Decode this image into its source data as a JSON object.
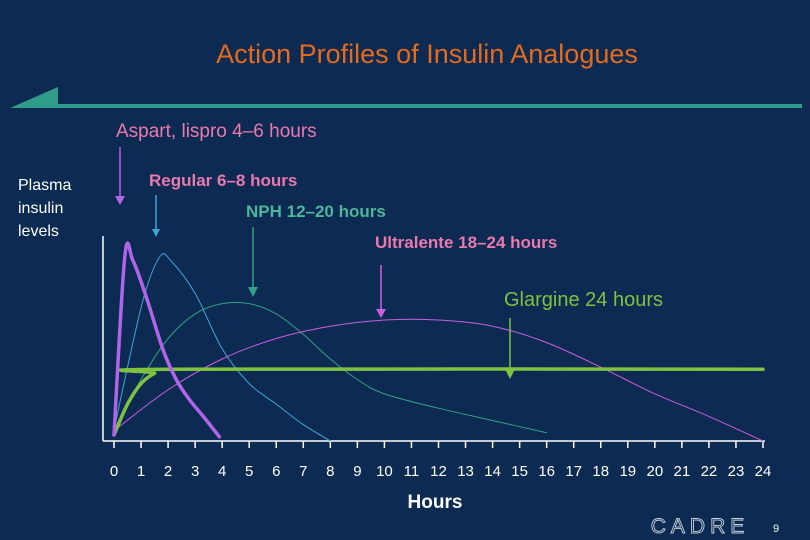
{
  "slide": {
    "title": "Action Profiles of Insulin Analogues",
    "ylabel_lines": [
      "Plasma",
      "insulin",
      "levels"
    ],
    "xlabel": "Hours",
    "brand": "CADRE",
    "page_number": "9"
  },
  "colors": {
    "background": "#0c2a52",
    "title": "#e46a1c",
    "accent_bar": "#2f9c8a",
    "axis": "#ffffff",
    "aspart_lispro": "#b065e8",
    "regular": "#3fa6d3",
    "nph": "#34a086",
    "ultralente": "#c95fe0",
    "glargine": "#7fc241",
    "labels_pink": "#ea79ae"
  },
  "annotations": [
    {
      "text": "Aspart, lispro 4–6 hours",
      "color": "#ea79ae",
      "arrow_color": "#b065e8"
    },
    {
      "text": "Regular 6–8 hours",
      "color": "#ea79ae",
      "arrow_color": "#3fa6d3"
    },
    {
      "text": "NPH 12–20 hours",
      "color": "#4fb59a",
      "arrow_color": "#34a086"
    },
    {
      "text": "Ultralente 18–24 hours",
      "color": "#ea79ae",
      "arrow_color": "#c95fe0"
    },
    {
      "text": "Glargine 24 hours",
      "color": "#7fc241",
      "arrow_color": "#7fc241"
    }
  ],
  "chart_data": {
    "type": "line",
    "xlabel": "Hours",
    "ylabel": "Plasma insulin levels",
    "xlim": [
      0,
      24
    ],
    "ylim": [
      0,
      1
    ],
    "x_ticks": [
      "0",
      "1",
      "2",
      "3",
      "4",
      "5",
      "6",
      "7",
      "8",
      "9",
      "10",
      "11",
      "12",
      "13",
      "14",
      "15",
      "16",
      "17",
      "18",
      "19",
      "20",
      "21",
      "22",
      "23",
      "24"
    ],
    "grid": false,
    "series": [
      {
        "name": "Aspart, lispro",
        "color": "#b065e8",
        "width": 3.5,
        "points": [
          [
            0,
            0.03
          ],
          [
            0.4,
            0.9
          ],
          [
            0.7,
            0.88
          ],
          [
            1.2,
            0.7
          ],
          [
            1.8,
            0.45
          ],
          [
            2.3,
            0.3
          ],
          [
            2.8,
            0.2
          ],
          [
            3.3,
            0.12
          ],
          [
            3.9,
            0.02
          ]
        ]
      },
      {
        "name": "Regular",
        "color": "#3fa6d3",
        "width": 1,
        "points": [
          [
            0,
            0.05
          ],
          [
            0.4,
            0.3
          ],
          [
            1.1,
            0.7
          ],
          [
            1.7,
            0.9
          ],
          [
            2.1,
            0.88
          ],
          [
            3,
            0.72
          ],
          [
            4,
            0.45
          ],
          [
            5,
            0.28
          ],
          [
            6,
            0.18
          ],
          [
            7,
            0.08
          ],
          [
            8,
            0
          ]
        ]
      },
      {
        "name": "NPH",
        "color": "#34a086",
        "width": 1,
        "points": [
          [
            0,
            0.05
          ],
          [
            1,
            0.3
          ],
          [
            2,
            0.5
          ],
          [
            3,
            0.62
          ],
          [
            4,
            0.67
          ],
          [
            5,
            0.67
          ],
          [
            6,
            0.62
          ],
          [
            7,
            0.52
          ],
          [
            8,
            0.4
          ],
          [
            9,
            0.3
          ],
          [
            10,
            0.23
          ],
          [
            12,
            0.16
          ],
          [
            14,
            0.1
          ],
          [
            16,
            0.04
          ]
        ]
      },
      {
        "name": "Ultralente",
        "color": "#c95fe0",
        "width": 1,
        "points": [
          [
            0,
            0.05
          ],
          [
            2,
            0.25
          ],
          [
            4,
            0.4
          ],
          [
            6,
            0.5
          ],
          [
            8,
            0.56
          ],
          [
            10,
            0.59
          ],
          [
            12,
            0.59
          ],
          [
            14,
            0.56
          ],
          [
            16,
            0.48
          ],
          [
            18,
            0.36
          ],
          [
            20,
            0.23
          ],
          [
            22,
            0.12
          ],
          [
            24,
            0
          ]
        ]
      },
      {
        "name": "Glargine",
        "color": "#7fc241",
        "width": 3.5,
        "points": [
          [
            0,
            0.03
          ],
          [
            0.5,
            0.18
          ],
          [
            1,
            0.28
          ],
          [
            1.5,
            0.33
          ],
          [
            2,
            0.35
          ],
          [
            24,
            0.35
          ]
        ]
      }
    ]
  }
}
